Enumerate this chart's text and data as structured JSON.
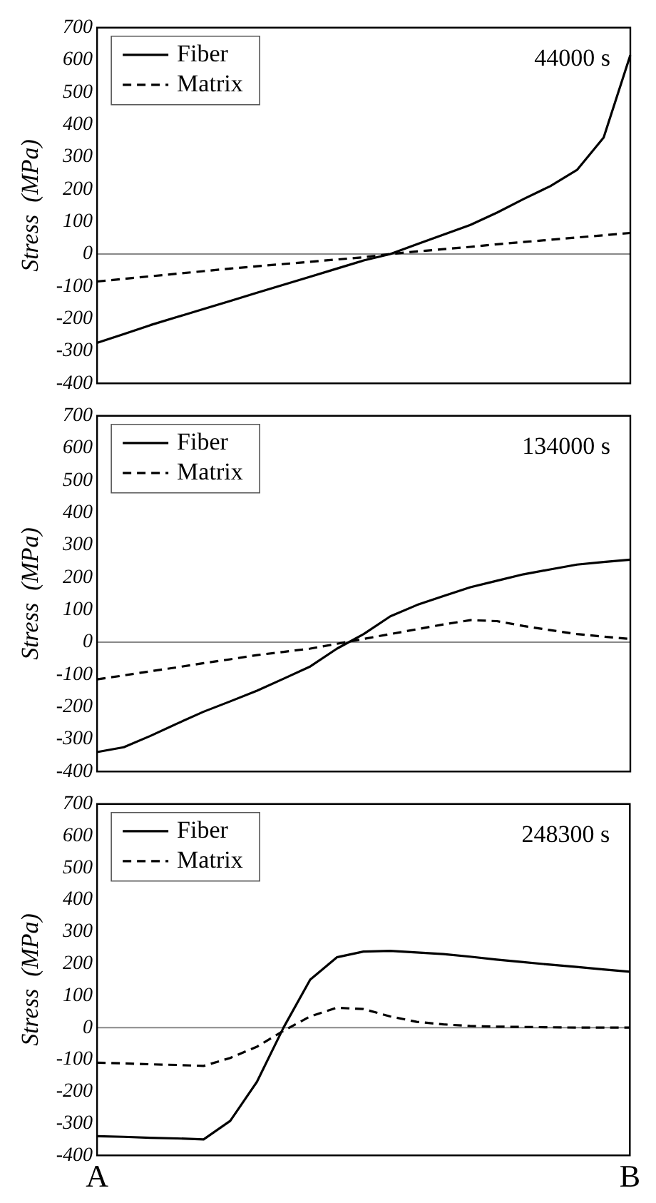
{
  "chart_data": [
    {
      "type": "line",
      "ylabel": "Stress  (MPa)",
      "annotations": [
        "44000 s"
      ],
      "categories": [
        null,
        null,
        null,
        null,
        null,
        null,
        null,
        null,
        null,
        null,
        null,
        null,
        null,
        null,
        null,
        null,
        null,
        null,
        null,
        null,
        null
      ],
      "ylim": [
        -400,
        700
      ],
      "yticks": [
        -400,
        -300,
        -200,
        -100,
        0,
        100,
        200,
        300,
        400,
        500,
        600,
        700
      ],
      "tick_labels": "y",
      "grid": false,
      "legend": "top left",
      "marker": "none",
      "ref_lines": [
        {
          "axis": "y",
          "value": 0,
          "color": "#888888"
        }
      ],
      "series": [
        {
          "name": "Fiber",
          "color": "#000000",
          "line_style": "solid",
          "values": [
            -275,
            -248,
            -220,
            -195,
            -170,
            -145,
            -120,
            -95,
            -70,
            -45,
            -20,
            0,
            30,
            60,
            90,
            128,
            170,
            210,
            260,
            360,
            615
          ]
        },
        {
          "name": "Matrix",
          "color": "#000000",
          "line_style": "dashed",
          "values": [
            -85,
            -77,
            -69,
            -61,
            -53,
            -45,
            -38,
            -31,
            -24,
            -17,
            -10,
            0,
            8,
            15,
            22,
            30,
            37,
            44,
            51,
            58,
            65
          ]
        }
      ]
    },
    {
      "type": "line",
      "ylabel": "Stress  (MPa)",
      "annotations": [
        "134000 s"
      ],
      "categories": [
        null,
        null,
        null,
        null,
        null,
        null,
        null,
        null,
        null,
        null,
        null,
        null,
        null,
        null,
        null,
        null,
        null,
        null,
        null,
        null,
        null
      ],
      "ylim": [
        -400,
        700
      ],
      "yticks": [
        -400,
        -300,
        -200,
        -100,
        0,
        100,
        200,
        300,
        400,
        500,
        600,
        700
      ],
      "tick_labels": "y",
      "grid": false,
      "legend": "top left",
      "marker": "none",
      "ref_lines": [
        {
          "axis": "y",
          "value": 0,
          "color": "#888888"
        }
      ],
      "series": [
        {
          "name": "Fiber",
          "color": "#000000",
          "line_style": "solid",
          "values": [
            -340,
            -325,
            -290,
            -252,
            -215,
            -183,
            -150,
            -113,
            -75,
            -20,
            25,
            80,
            115,
            143,
            170,
            190,
            210,
            225,
            240,
            248,
            255
          ]
        },
        {
          "name": "Matrix",
          "color": "#000000",
          "line_style": "dashed",
          "values": [
            -115,
            -103,
            -90,
            -78,
            -65,
            -53,
            -40,
            -30,
            -20,
            -5,
            10,
            25,
            40,
            55,
            68,
            65,
            50,
            37,
            25,
            17,
            10
          ]
        }
      ]
    },
    {
      "type": "line",
      "ylabel": "Stress  (MPa)",
      "annotations": [
        "248300 s"
      ],
      "categories": [
        "A",
        null,
        null,
        null,
        null,
        null,
        null,
        null,
        null,
        null,
        null,
        null,
        null,
        null,
        null,
        null,
        null,
        null,
        null,
        null,
        "B"
      ],
      "ylim": [
        -400,
        700
      ],
      "yticks": [
        -400,
        -300,
        -200,
        -100,
        0,
        100,
        200,
        300,
        400,
        500,
        600,
        700
      ],
      "grid": false,
      "legend": "top left",
      "marker": "none",
      "ref_lines": [
        {
          "axis": "y",
          "value": 0,
          "color": "#888888"
        }
      ],
      "series": [
        {
          "name": "Fiber",
          "color": "#000000",
          "line_style": "solid",
          "values": [
            -340,
            -342,
            -345,
            -347,
            -350,
            -292,
            -170,
            0,
            150,
            220,
            238,
            240,
            235,
            230,
            222,
            213,
            205,
            197,
            190,
            182,
            175
          ]
        },
        {
          "name": "Matrix",
          "color": "#000000",
          "line_style": "dashed",
          "values": [
            -110,
            -112,
            -115,
            -117,
            -120,
            -95,
            -60,
            -10,
            35,
            62,
            58,
            35,
            18,
            10,
            5,
            3,
            2,
            1,
            0,
            0,
            0
          ]
        }
      ]
    }
  ]
}
